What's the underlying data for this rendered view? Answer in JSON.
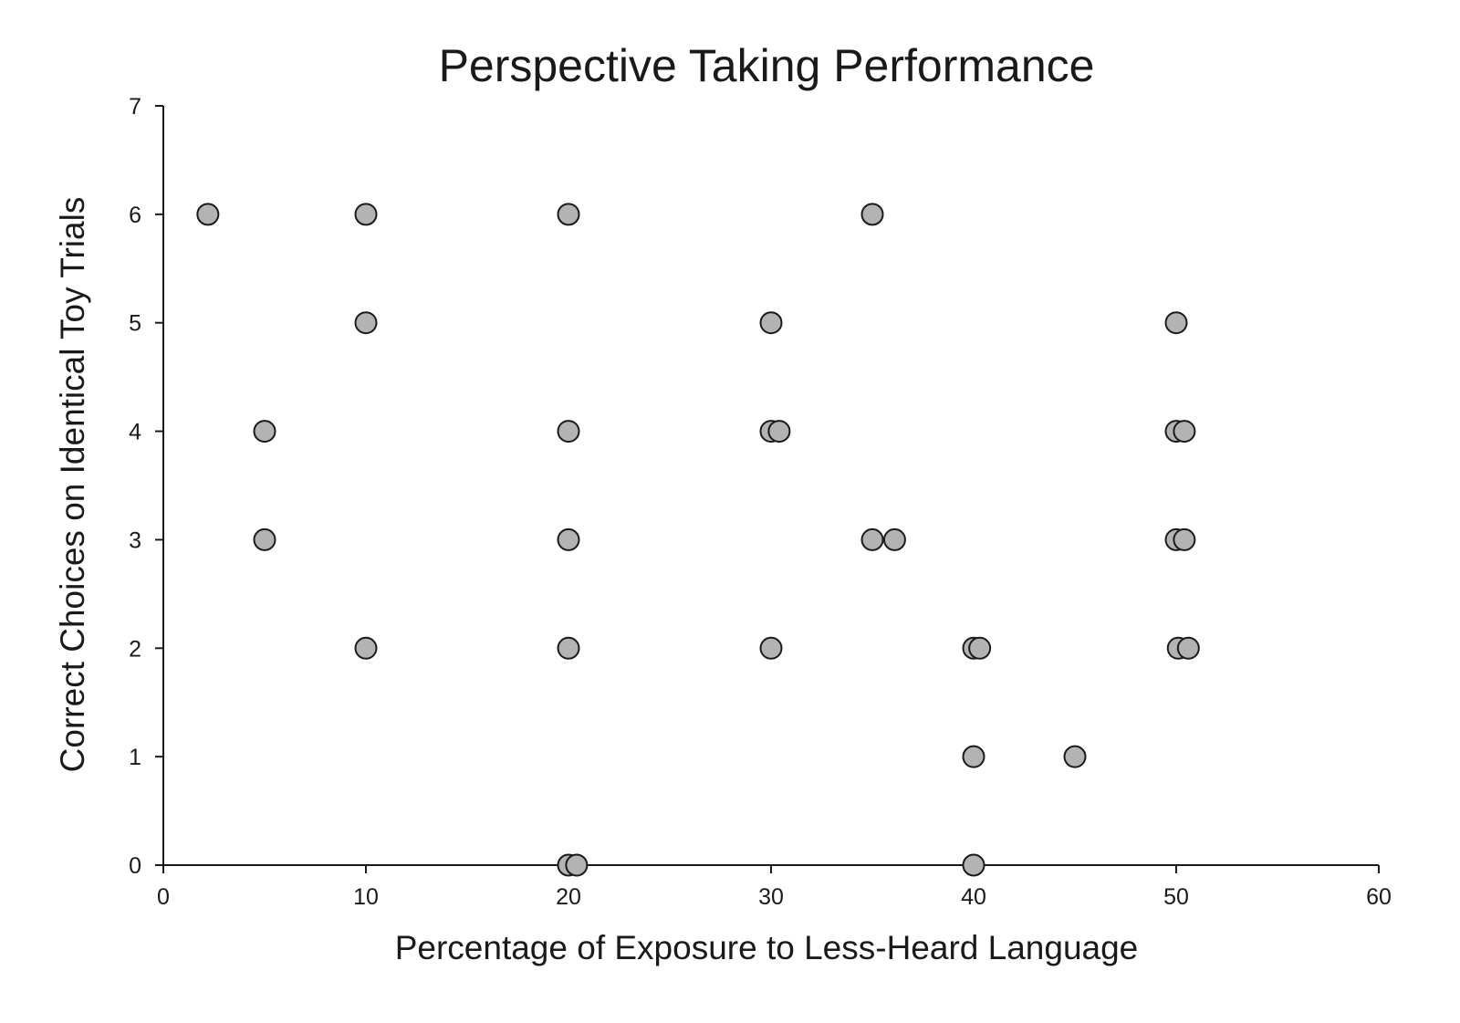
{
  "chart_data": {
    "type": "scatter",
    "title": "Perspective Taking Performance",
    "xlabel": "Percentage of Exposure to Less-Heard Language",
    "ylabel": "Correct Choices on Identical Toy Trials",
    "xlim": [
      0,
      60
    ],
    "ylim": [
      0,
      7
    ],
    "xticks": [
      "0",
      "10",
      "20",
      "30",
      "40",
      "50",
      "60"
    ],
    "yticks": [
      "0",
      "1",
      "2",
      "3",
      "4",
      "5",
      "6",
      "7"
    ],
    "grid": false,
    "marker_color": "#b3b3b3",
    "marker_edge_color": "#1a1a1a",
    "series": [
      {
        "points": [
          {
            "x": 2.2,
            "y": 6
          },
          {
            "x": 10,
            "y": 6
          },
          {
            "x": 20,
            "y": 6
          },
          {
            "x": 35,
            "y": 6
          },
          {
            "x": 10,
            "y": 5
          },
          {
            "x": 30,
            "y": 5
          },
          {
            "x": 50,
            "y": 5
          },
          {
            "x": 5,
            "y": 4
          },
          {
            "x": 20,
            "y": 4
          },
          {
            "x": 30,
            "y": 4
          },
          {
            "x": 30.4,
            "y": 4
          },
          {
            "x": 50,
            "y": 4
          },
          {
            "x": 50.4,
            "y": 4
          },
          {
            "x": 5,
            "y": 3
          },
          {
            "x": 20,
            "y": 3
          },
          {
            "x": 35,
            "y": 3
          },
          {
            "x": 36.1,
            "y": 3
          },
          {
            "x": 50,
            "y": 3
          },
          {
            "x": 50.4,
            "y": 3
          },
          {
            "x": 10,
            "y": 2
          },
          {
            "x": 20,
            "y": 2
          },
          {
            "x": 30,
            "y": 2
          },
          {
            "x": 40,
            "y": 2
          },
          {
            "x": 40.3,
            "y": 2
          },
          {
            "x": 50.1,
            "y": 2
          },
          {
            "x": 50.6,
            "y": 2
          },
          {
            "x": 40,
            "y": 1
          },
          {
            "x": 45,
            "y": 1
          },
          {
            "x": 20,
            "y": 0
          },
          {
            "x": 20.4,
            "y": 0
          },
          {
            "x": 40,
            "y": 0
          }
        ]
      }
    ]
  }
}
